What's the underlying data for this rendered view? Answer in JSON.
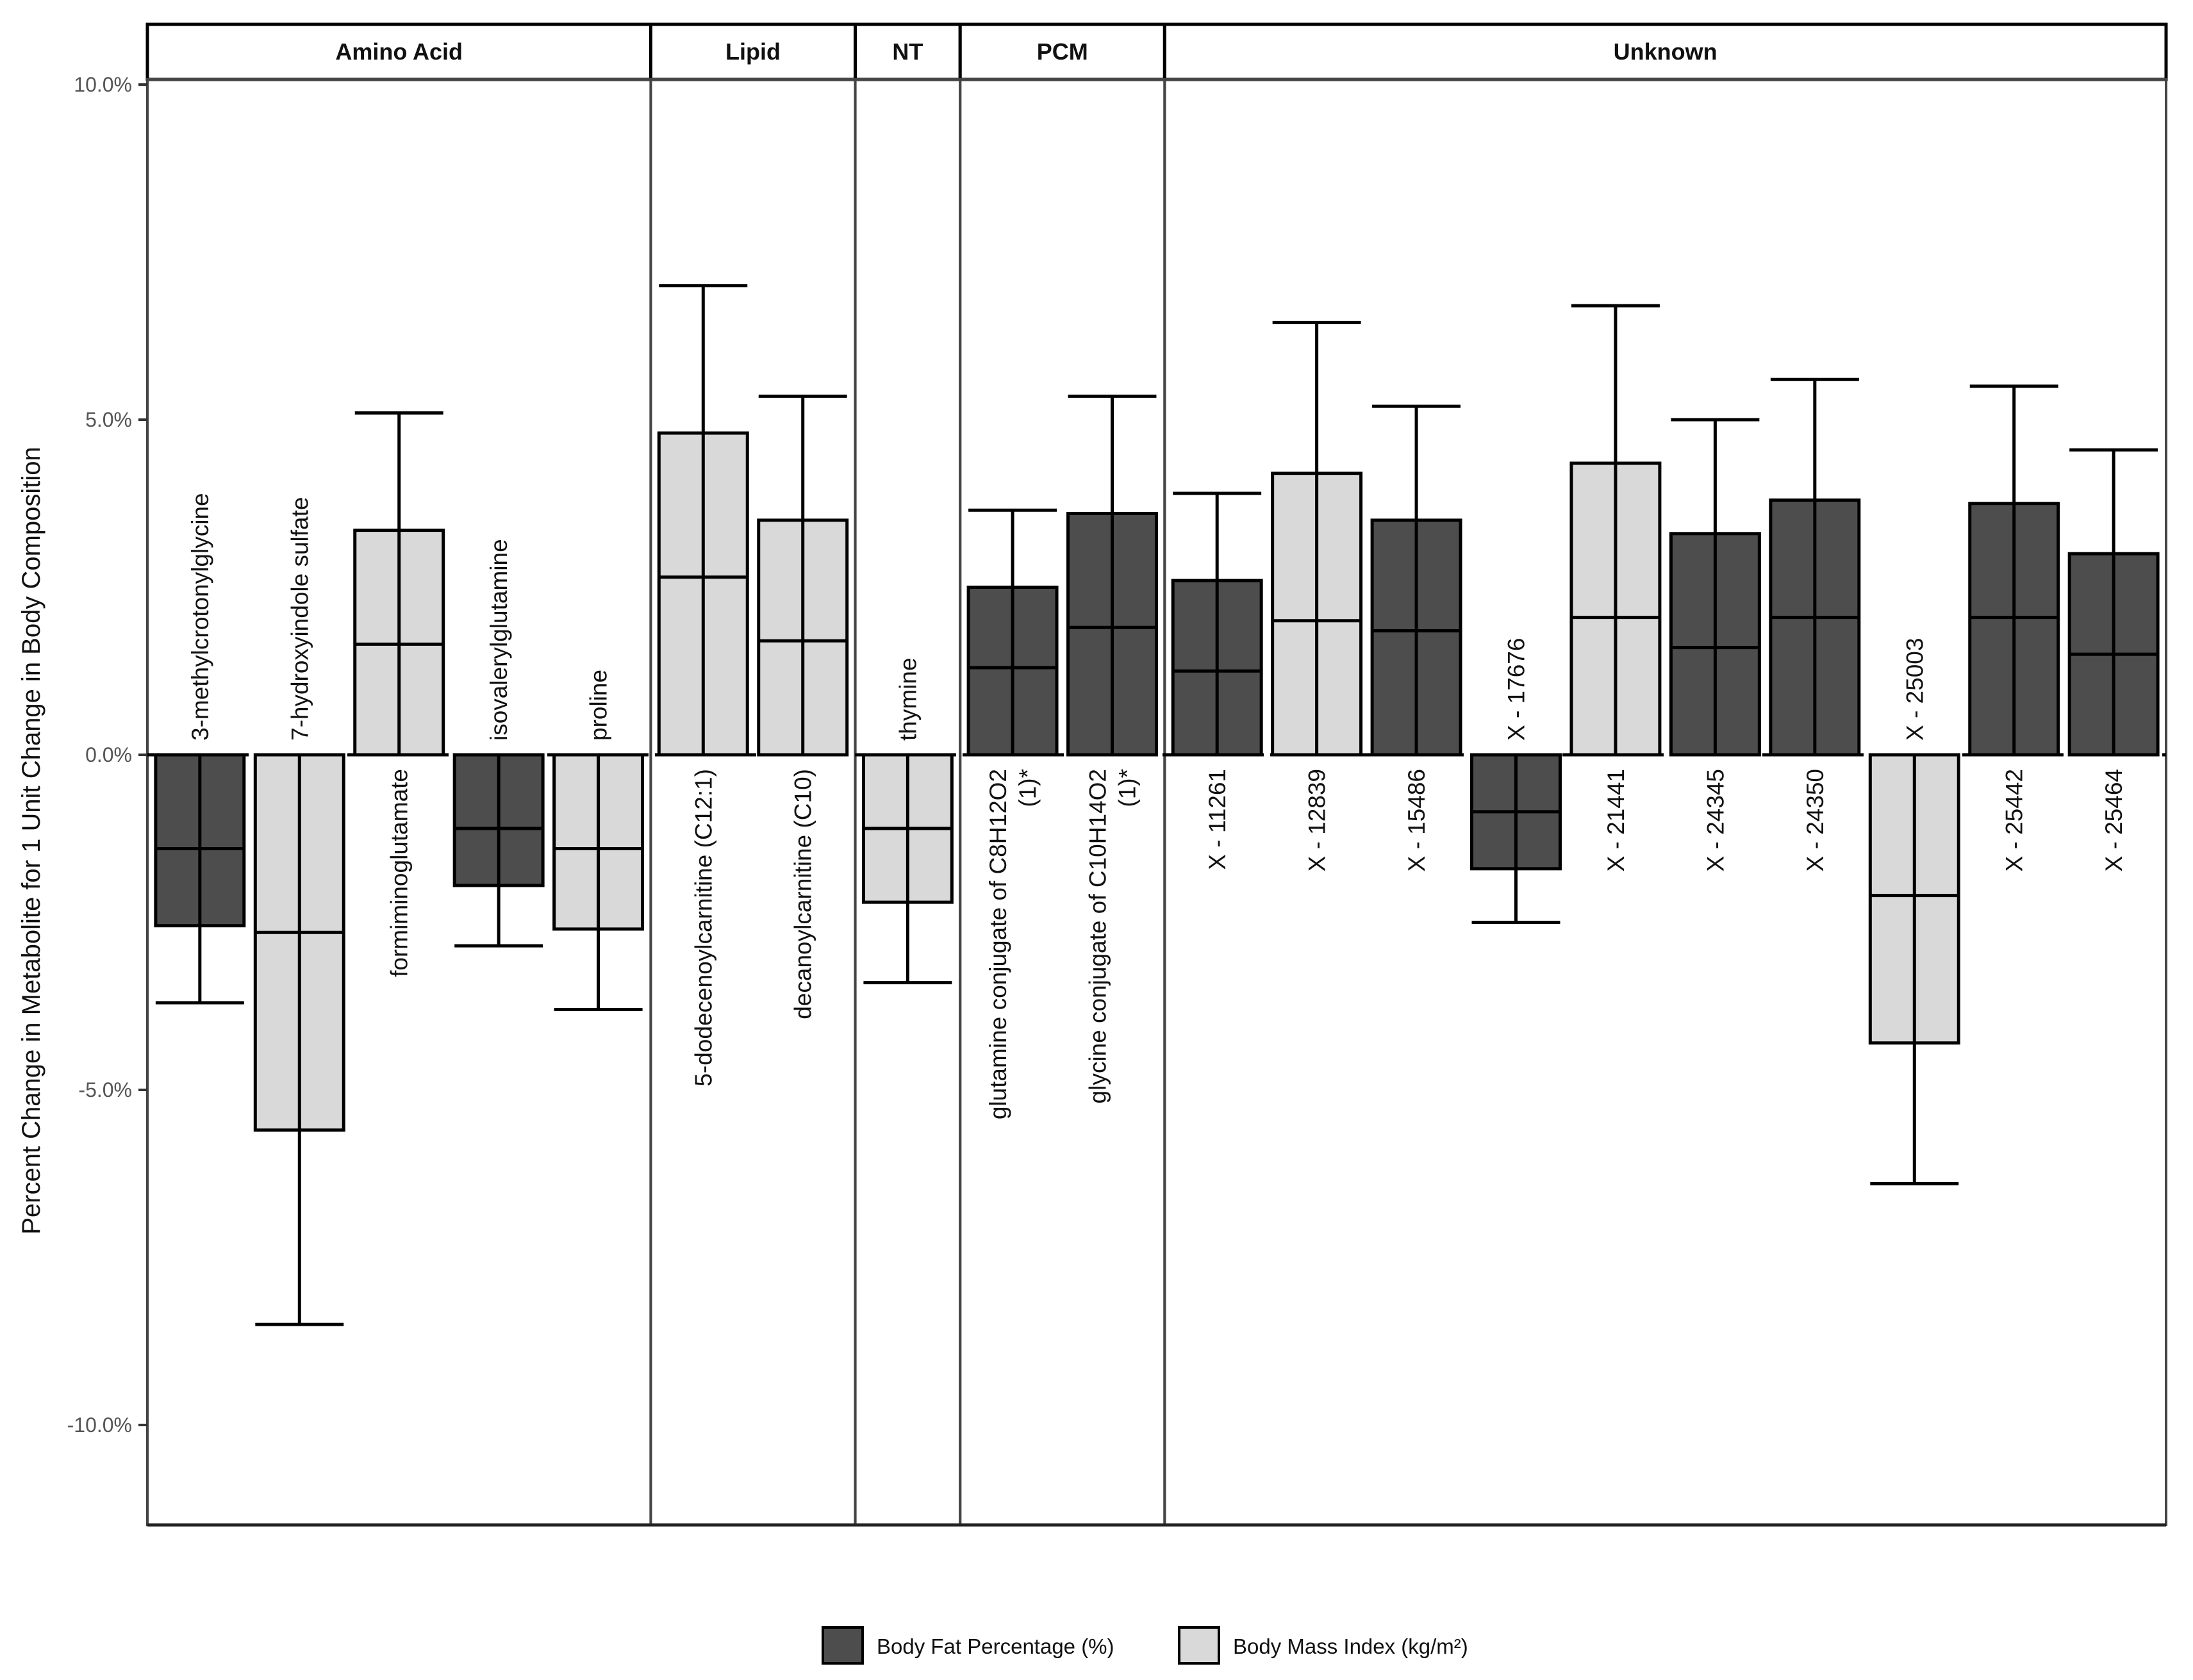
{
  "chart_data": {
    "type": "bar",
    "ylabel": "Percent Change in Metabolite for 1 Unit Change in Body Composition",
    "ylim": [
      -11.5,
      10.0
    ],
    "yticks": [
      10,
      5,
      0,
      -5,
      -10
    ],
    "ytick_labels": [
      "10.0%",
      "5.0%",
      "0.0%",
      "-5.0%",
      "-10.0%"
    ],
    "colors": {
      "Body Fat Percentage (%)": "#4d4d4d",
      "Body Mass Index (kg/m²)": "#d9d9d9",
      "outline": "#000000",
      "panel_border": "#333333"
    },
    "series": [
      {
        "name": "Body Fat Percentage (%)",
        "legend_label": "Body Fat Percentage (%)",
        "color": "#4d4d4d"
      },
      {
        "name": "Body Mass Index (kg/m²)",
        "legend_label": "Body Mass Index (kg/m²)",
        "color": "#d9d9d9"
      }
    ],
    "legend_position": "bottom",
    "panels": [
      {
        "name": "Amino Acid",
        "items": [
          {
            "label": "3-methylcrotonylglycine",
            "series": "Body Fat Percentage (%)",
            "estimate": -1.4,
            "lower": -3.7,
            "upper": 0.0,
            "bar": -2.55
          },
          {
            "label": "7-hydroxyindole sulfate",
            "series": "Body Mass Index (kg/m²)",
            "estimate": -2.65,
            "lower": -8.5,
            "upper": 0.0,
            "bar": -5.6
          },
          {
            "label": "formiminoglutamate",
            "series": "Body Mass Index (kg/m²)",
            "estimate": 1.65,
            "lower": 0.0,
            "upper": 5.1,
            "bar": 3.35
          },
          {
            "label": "isovalerylglutamine",
            "series": "Body Fat Percentage (%)",
            "estimate": -1.1,
            "lower": -2.85,
            "upper": 0.0,
            "bar": -1.95
          },
          {
            "label": "proline",
            "series": "Body Mass Index (kg/m²)",
            "estimate": -1.4,
            "lower": -3.8,
            "upper": 0.0,
            "bar": -2.6
          }
        ]
      },
      {
        "name": "Lipid",
        "items": [
          {
            "label": "5-dodecenoylcarnitine (C12:1)",
            "series": "Body Mass Index (kg/m²)",
            "estimate": 2.65,
            "lower": 0.0,
            "upper": 7.0,
            "bar": 4.8
          },
          {
            "label": "decanoylcarnitine (C10)",
            "series": "Body Mass Index (kg/m²)",
            "estimate": 1.7,
            "lower": 0.0,
            "upper": 5.35,
            "bar": 3.5
          }
        ]
      },
      {
        "name": "NT",
        "items": [
          {
            "label": "thymine",
            "series": "Body Mass Index (kg/m²)",
            "estimate": -1.1,
            "lower": -3.4,
            "upper": 0.0,
            "bar": -2.2
          }
        ]
      },
      {
        "name": "PCM",
        "items": [
          {
            "label": "glutamine conjugate of C8H12O2 (1)*",
            "label_lines": [
              "glutamine conjugate of C8H12O2",
              "(1)*"
            ],
            "series": "Body Fat Percentage (%)",
            "estimate": 1.3,
            "lower": 0.0,
            "upper": 3.65,
            "bar": 2.5
          },
          {
            "label": "glycine conjugate of C10H14O2 (1)*",
            "label_lines": [
              "glycine conjugate of C10H14O2",
              "(1)*"
            ],
            "series": "Body Fat Percentage (%)",
            "estimate": 1.9,
            "lower": 0.0,
            "upper": 5.35,
            "bar": 3.6
          }
        ]
      },
      {
        "name": "Unknown",
        "items": [
          {
            "label": "X - 11261",
            "series": "Body Fat Percentage (%)",
            "estimate": 1.25,
            "lower": 0.0,
            "upper": 3.9,
            "bar": 2.6
          },
          {
            "label": "X - 12839",
            "series": "Body Mass Index (kg/m²)",
            "estimate": 2.0,
            "lower": 0.0,
            "upper": 6.45,
            "bar": 4.2
          },
          {
            "label": "X - 15486",
            "series": "Body Fat Percentage (%)",
            "estimate": 1.85,
            "lower": 0.0,
            "upper": 5.2,
            "bar": 3.5
          },
          {
            "label": "X - 17676",
            "series": "Body Fat Percentage (%)",
            "estimate": -0.85,
            "lower": -2.5,
            "upper": 0.0,
            "bar": -1.7
          },
          {
            "label": "X - 21441",
            "series": "Body Mass Index (kg/m²)",
            "estimate": 2.05,
            "lower": 0.0,
            "upper": 6.7,
            "bar": 4.35
          },
          {
            "label": "X - 24345",
            "series": "Body Fat Percentage (%)",
            "estimate": 1.6,
            "lower": 0.0,
            "upper": 5.0,
            "bar": 3.3
          },
          {
            "label": "X - 24350",
            "series": "Body Fat Percentage (%)",
            "estimate": 2.05,
            "lower": 0.0,
            "upper": 5.6,
            "bar": 3.8
          },
          {
            "label": "X - 25003",
            "series": "Body Mass Index (kg/m²)",
            "estimate": -2.1,
            "lower": -6.4,
            "upper": 0.0,
            "bar": -4.3
          },
          {
            "label": "X - 25442",
            "series": "Body Fat Percentage (%)",
            "estimate": 2.05,
            "lower": 0.0,
            "upper": 5.5,
            "bar": 3.75
          },
          {
            "label": "X - 25464",
            "series": "Body Fat Percentage (%)",
            "estimate": 1.5,
            "lower": 0.0,
            "upper": 4.55,
            "bar": 3.0
          }
        ]
      }
    ]
  }
}
